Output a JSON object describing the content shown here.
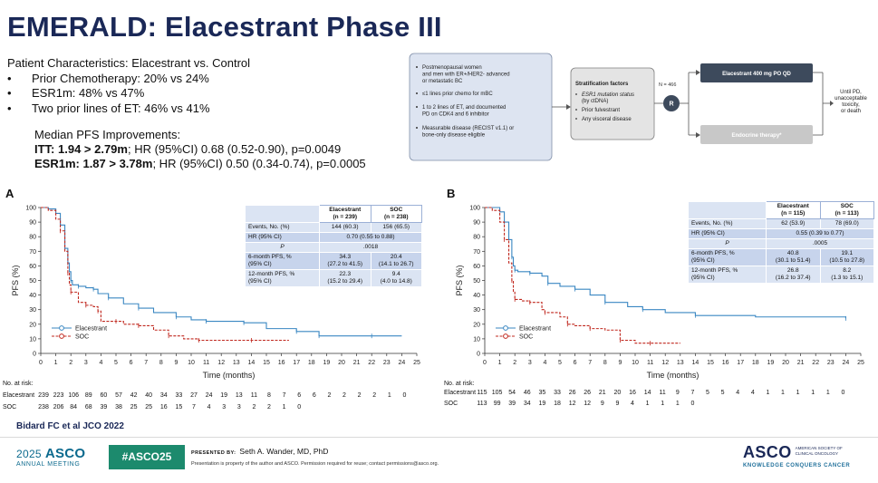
{
  "title": "EMERALD: Elacestrant Phase III",
  "patient": {
    "heading": "Patient Characteristics: Elacestrant vs. Control",
    "bullet": "•",
    "items": [
      "Prior Chemotherapy: 20% vs 24%",
      "ESR1m: 48% vs 47%",
      "Two prior lines of ET: 46% vs 41%"
    ]
  },
  "pfs": {
    "heading": "Median PFS Improvements:",
    "itt_bold": "ITT: 1.94 > 2.79m",
    "itt_rest": "; HR (95%CI) 0.68 (0.52-0.90), p=0.0049",
    "esr_bold": "ESR1m: 1.87 > 3.78m",
    "esr_rest": "; HR (95%CI) 0.50 (0.34-0.74), p=0.0005"
  },
  "design": {
    "eligibility": [
      "Postmenopausal women",
      "and men with ER+/HER2- advanced",
      "or metastatic BC",
      "≤1 lines prior chemo for mBC",
      "1 to 2 lines of ET, and documented",
      "PD on CDK4 and 6 inhibitor",
      "Measurable disease (RECIST v1.1) or",
      "bone-only disease eligible"
    ],
    "strat_title": "Stratification factors",
    "strat_items": [
      "ESR1 mutation status",
      "(by ctDNA)",
      "Prior fulvestrant",
      "Any visceral disease"
    ],
    "n_label": "N = 466",
    "r_label": "R",
    "arm1": "Elacestrant 400 mg PO QD",
    "arm2": "Endocrine therapy*",
    "until": [
      "Until PD,",
      "unacceptable",
      "toxicity,",
      "or death"
    ]
  },
  "colors": {
    "title": "#1a2857",
    "elacestrant": "#3a87c2",
    "soc": "#c0281f",
    "arm1": "#3d4a5c",
    "arm2": "#c8c8c8"
  },
  "panels": [
    {
      "letter": "A",
      "legend": [
        "Elacestrant",
        "SOC"
      ],
      "table": {
        "head": [
          "Elacestrant",
          "(n = 239)",
          "SOC",
          "(n = 238)"
        ],
        "rows": [
          {
            "label": "Events, No. (%)",
            "a": "144 (60.3)",
            "b": "156 (65.5)"
          },
          {
            "label": "HR (95% CI)",
            "span": "0.70 (0.55 to 0.88)"
          },
          {
            "label": "P",
            "span": ".0018"
          },
          {
            "label": "6-month PFS, %",
            "label2": "(95% CI)",
            "a": "34.3",
            "a2": "(27.2 to 41.5)",
            "b": "20.4",
            "b2": "(14.1 to 26.7)"
          },
          {
            "label": "12-month PFS, %",
            "label2": "(95% CI)",
            "a": "22.3",
            "a2": "(15.2 to 29.4)",
            "b": "9.4",
            "b2": "(4.0 to 14.8)"
          }
        ]
      },
      "risk": {
        "label": "No. at risk:",
        "elac_label": "Elacestrant",
        "soc_label": "SOC",
        "elac": [
          "239",
          "223",
          "106",
          "89",
          "60",
          "57",
          "42",
          "40",
          "34",
          "33",
          "27",
          "24",
          "19",
          "13",
          "11",
          "8",
          "7",
          "6",
          "6",
          "2",
          "2",
          "2",
          "2",
          "1",
          "0"
        ],
        "soc": [
          "238",
          "206",
          "84",
          "68",
          "39",
          "38",
          "25",
          "25",
          "16",
          "15",
          "7",
          "4",
          "3",
          "3",
          "2",
          "2",
          "1",
          "0"
        ]
      }
    },
    {
      "letter": "B",
      "legend": [
        "Elacestrant",
        "SOC"
      ],
      "table": {
        "head": [
          "Elacestrant",
          "(n = 115)",
          "SOC",
          "(n = 113)"
        ],
        "rows": [
          {
            "label": "Events, No. (%)",
            "a": "62 (53.9)",
            "b": "78 (69.0)"
          },
          {
            "label": "HR (95% CI)",
            "span": "0.55 (0.39 to 0.77)"
          },
          {
            "label": "P",
            "span": ".0005"
          },
          {
            "label": "6-month PFS, %",
            "label2": "(95% CI)",
            "a": "40.8",
            "a2": "(30.1 to 51.4)",
            "b": "19.1",
            "b2": "(10.5 to 27.8)"
          },
          {
            "label": "12-month PFS, %",
            "label2": "(95% CI)",
            "a": "26.8",
            "a2": "(16.2 to 37.4)",
            "b": "8.2",
            "b2": "(1.3 to 15.1)"
          }
        ]
      },
      "risk": {
        "label": "No. at risk:",
        "elac_label": "Elacestrant",
        "soc_label": "SOC",
        "elac": [
          "115",
          "105",
          "54",
          "46",
          "35",
          "33",
          "26",
          "26",
          "21",
          "20",
          "16",
          "14",
          "11",
          "9",
          "7",
          "5",
          "5",
          "4",
          "4",
          "1",
          "1",
          "1",
          "1",
          "1",
          "0"
        ],
        "soc": [
          "113",
          "99",
          "39",
          "34",
          "19",
          "18",
          "12",
          "12",
          "9",
          "9",
          "4",
          "1",
          "1",
          "1",
          "0"
        ]
      }
    }
  ],
  "chart_data": [
    {
      "type": "line",
      "xlabel": "Time (months)",
      "ylabel": "PFS (%)",
      "xlim": [
        0,
        25
      ],
      "ylim": [
        0,
        100
      ],
      "xticks": [
        0,
        1,
        2,
        3,
        4,
        5,
        6,
        7,
        8,
        9,
        10,
        11,
        12,
        13,
        14,
        15,
        16,
        17,
        18,
        19,
        20,
        21,
        22,
        23,
        24,
        25
      ],
      "yticks": [
        0,
        10,
        20,
        30,
        40,
        50,
        60,
        70,
        80,
        90,
        100
      ],
      "series": [
        {
          "name": "Elacestrant",
          "x": [
            0,
            0.5,
            1,
            1.3,
            1.6,
            1.8,
            1.9,
            2.0,
            2.1,
            2.5,
            3.0,
            3.5,
            3.8,
            4.5,
            5.5,
            6.5,
            7.5,
            9,
            10,
            11,
            12,
            13.5,
            15,
            17,
            18.3,
            18.5,
            20,
            22,
            24
          ],
          "y": [
            100,
            99,
            96,
            88,
            72,
            62,
            56,
            50,
            47,
            46,
            45,
            44,
            41,
            38,
            34,
            31,
            28,
            25,
            23,
            22,
            22,
            21,
            17,
            15,
            15,
            12,
            12,
            12,
            12
          ]
        },
        {
          "name": "SOC",
          "x": [
            0,
            0.5,
            1,
            1.3,
            1.6,
            1.8,
            1.9,
            2.0,
            2.5,
            3.0,
            3.5,
            3.8,
            4.0,
            5.0,
            5.5,
            6.5,
            7.5,
            8.5,
            9.5,
            10.5,
            12,
            14,
            16.5
          ],
          "y": [
            100,
            98,
            92,
            84,
            70,
            55,
            47,
            42,
            35,
            33,
            32,
            29,
            22,
            22,
            20,
            19,
            16,
            12,
            10,
            9,
            9,
            9,
            9
          ]
        }
      ]
    },
    {
      "type": "line",
      "xlabel": "Time (months)",
      "ylabel": "PFS (%)",
      "xlim": [
        0,
        25
      ],
      "ylim": [
        0,
        100
      ],
      "xticks": [
        0,
        1,
        2,
        3,
        4,
        5,
        6,
        7,
        8,
        9,
        10,
        11,
        12,
        13,
        14,
        15,
        16,
        17,
        18,
        19,
        20,
        21,
        22,
        23,
        24,
        25
      ],
      "yticks": [
        0,
        10,
        20,
        30,
        40,
        50,
        60,
        70,
        80,
        90,
        100
      ],
      "series": [
        {
          "name": "Elacestrant",
          "x": [
            0,
            0.5,
            1,
            1.3,
            1.6,
            1.8,
            1.9,
            2.0,
            2.2,
            3.0,
            3.8,
            4.2,
            5.0,
            6.0,
            7.0,
            8.0,
            9.5,
            10.5,
            12,
            14,
            18,
            24
          ],
          "y": [
            100,
            100,
            97,
            90,
            78,
            66,
            60,
            57,
            56,
            55,
            53,
            48,
            46,
            44,
            40,
            35,
            32,
            30,
            28,
            26,
            25,
            24
          ]
        },
        {
          "name": "SOC",
          "x": [
            0,
            0.5,
            1,
            1.3,
            1.6,
            1.8,
            1.9,
            2.0,
            2.5,
            3.0,
            3.8,
            4.0,
            5.0,
            5.5,
            6.0,
            7.0,
            8.0,
            9.0,
            10.0,
            11.0,
            13.0
          ],
          "y": [
            100,
            98,
            90,
            78,
            62,
            50,
            42,
            37,
            36,
            35,
            30,
            28,
            25,
            20,
            19,
            17,
            16,
            9,
            7,
            7,
            7
          ]
        }
      ]
    }
  ]
}
